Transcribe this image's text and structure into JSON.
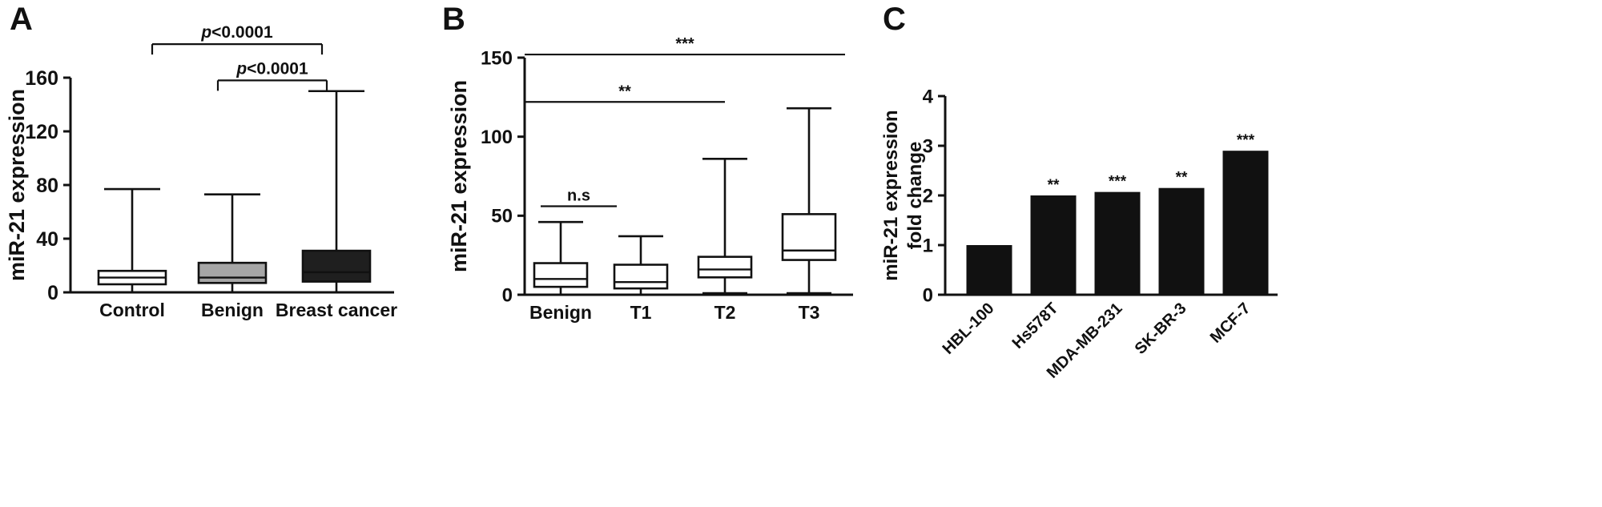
{
  "chart_data": [
    {
      "panel": "A",
      "type": "box",
      "ylabel": "miR-21 expression",
      "ylim": [
        0,
        160
      ],
      "yticks": [
        0,
        40,
        80,
        120,
        160
      ],
      "categories": [
        "Control",
        "Benign",
        "Breast cancer"
      ],
      "boxes": [
        {
          "label": "Control",
          "min": 0,
          "q1": 6,
          "median": 11,
          "q3": 16,
          "max": 77,
          "fill": "#ffffff"
        },
        {
          "label": "Benign",
          "min": 0,
          "q1": 7,
          "median": 11,
          "q3": 22,
          "max": 73,
          "fill": "#a6a6a6"
        },
        {
          "label": "Breast cancer",
          "min": 0,
          "q1": 8,
          "median": 15,
          "q3": 31,
          "max": 150,
          "fill": "#1f1f1f"
        }
      ],
      "annotations": [
        {
          "text": "p<0.0001",
          "from": 0,
          "to": 2,
          "y": 185,
          "style": "bracket",
          "x1off": 25,
          "x2off": -18
        },
        {
          "text": "p<0.0001",
          "from": 1,
          "to": 2,
          "y": 158,
          "style": "bracket",
          "x1off": -18,
          "x2off": -12
        }
      ],
      "grid": false,
      "legend": null
    },
    {
      "panel": "B",
      "type": "box",
      "ylabel": "miR-21 expression",
      "ylim": [
        0,
        150
      ],
      "yticks": [
        0,
        50,
        100,
        150
      ],
      "categories": [
        "Benign",
        "T1",
        "T2",
        "T3"
      ],
      "boxes": [
        {
          "label": "Benign",
          "min": 0,
          "q1": 5,
          "median": 10,
          "q3": 20,
          "max": 46,
          "fill": "#ffffff"
        },
        {
          "label": "T1",
          "min": 0,
          "q1": 4,
          "median": 8,
          "q3": 19,
          "max": 37,
          "fill": "#ffffff"
        },
        {
          "label": "T2",
          "min": 1,
          "q1": 11,
          "median": 16,
          "q3": 24,
          "max": 86,
          "fill": "#ffffff"
        },
        {
          "label": "T3",
          "min": 1,
          "q1": 22,
          "median": 28,
          "q3": 51,
          "max": 118,
          "fill": "#ffffff"
        }
      ],
      "annotations": [
        {
          "text": "***",
          "from": 0,
          "to": 3,
          "y": 152,
          "style": "line",
          "x1off": -45,
          "x2off": 45
        },
        {
          "text": "**",
          "from": 0,
          "to": 2,
          "y": 122,
          "style": "line",
          "x1off": -45,
          "x2off": 0
        },
        {
          "text": "n.s",
          "from": 0,
          "to": 1,
          "y": 56,
          "style": "line",
          "x1off": -25,
          "x2off": -30
        }
      ],
      "grid": false,
      "legend": null
    },
    {
      "panel": "C",
      "type": "bar",
      "ylabel_lines": [
        "miR-21 expression",
        "fold change"
      ],
      "ylim": [
        0,
        4
      ],
      "yticks": [
        0,
        1,
        2,
        3,
        4
      ],
      "bar_color": "#111111",
      "categories": [
        "HBL-100",
        "Hs578T",
        "MDA-MB-231",
        "SK-BR-3",
        "MCF-7"
      ],
      "bars": [
        {
          "label": "HBL-100",
          "value": 1.0,
          "sig": ""
        },
        {
          "label": "Hs578T",
          "value": 2.0,
          "sig": "**"
        },
        {
          "label": "MDA-MB-231",
          "value": 2.07,
          "sig": "***"
        },
        {
          "label": "SK-BR-3",
          "value": 2.15,
          "sig": "**"
        },
        {
          "label": "MCF-7",
          "value": 2.9,
          "sig": "***"
        }
      ],
      "grid": false,
      "legend": null
    }
  ]
}
